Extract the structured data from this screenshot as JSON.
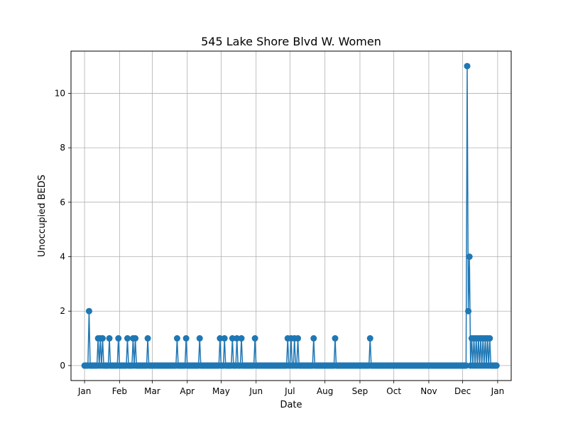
{
  "chart_data": {
    "type": "line",
    "title": "545 Lake Shore Blvd W. Women",
    "xlabel": "Date",
    "ylabel": "Unoccupied BEDS",
    "x_ticks": [
      "Jan",
      "Feb",
      "Mar",
      "Apr",
      "May",
      "Jun",
      "Jul",
      "Aug",
      "Sep",
      "Oct",
      "Nov",
      "Dec",
      "Jan"
    ],
    "y_ticks": [
      "0",
      "2",
      "4",
      "6",
      "8",
      "10"
    ],
    "xlim": [
      "2023-12-20",
      "2025-01-13"
    ],
    "ylim": [
      -0.55,
      11.55
    ],
    "grid": true,
    "color": "#1f77b4",
    "series": [
      {
        "x": [
          "2024-01-01",
          "2024-01-05",
          "2024-01-13",
          "2024-01-15",
          "2024-01-17",
          "2024-01-23",
          "2024-01-31",
          "2024-02-08",
          "2024-02-13",
          "2024-02-15",
          "2024-02-26",
          "2024-03-23",
          "2024-03-31",
          "2024-04-12",
          "2024-04-30",
          "2024-05-04",
          "2024-05-11",
          "2024-05-15",
          "2024-05-19",
          "2024-05-31",
          "2024-06-29",
          "2024-07-02",
          "2024-07-05",
          "2024-07-08",
          "2024-07-22",
          "2024-08-10",
          "2024-09-10",
          "2024-12-05",
          "2024-12-06",
          "2024-12-07",
          "2024-12-09",
          "2024-12-11",
          "2024-12-13",
          "2024-12-15",
          "2024-12-17",
          "2024-12-19",
          "2024-12-21",
          "2024-12-23",
          "2024-12-25",
          "2024-12-31"
        ],
        "values": [
          0,
          2,
          1,
          1,
          1,
          1,
          1,
          1,
          1,
          1,
          1,
          1,
          1,
          1,
          1,
          1,
          1,
          1,
          1,
          1,
          1,
          1,
          1,
          1,
          1,
          1,
          1,
          11,
          2,
          4,
          1,
          1,
          1,
          1,
          1,
          1,
          1,
          1,
          1,
          0
        ]
      }
    ]
  }
}
